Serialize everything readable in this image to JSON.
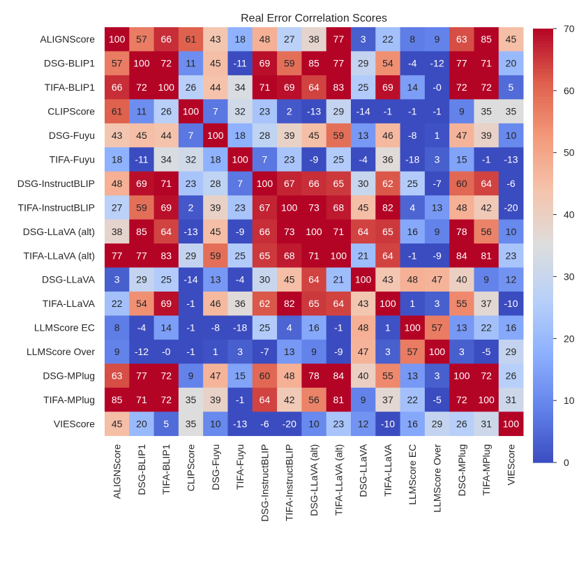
{
  "chart_data": {
    "type": "heatmap",
    "title": "Real Error Correlation Scores",
    "row_labels": [
      "ALIGNScore",
      "DSG-BLIP1",
      "TIFA-BLIP1",
      "CLIPScore",
      "DSG-Fuyu",
      "TIFA-Fuyu",
      "DSG-InstructBLIP",
      "TIFA-InstructBLIP",
      "DSG-LLaVA (alt)",
      "TIFA-LLaVA (alt)",
      "DSG-LLaVA",
      "TIFA-LLaVA",
      "LLMScore EC",
      "LLMScore Over",
      "DSG-MPlug",
      "TIFA-MPlug",
      "VIEScore"
    ],
    "col_labels": [
      "ALIGNScore",
      "DSG-BLIP1",
      "TIFA-BLIP1",
      "CLIPScore",
      "DSG-Fuyu",
      "TIFA-Fuyu",
      "DSG-InstructBLIP",
      "TIFA-InstructBLIP",
      "DSG-LLaVA (alt)",
      "TIFA-LLaVA (alt)",
      "DSG-LLaVA",
      "TIFA-LLaVA",
      "LLMScore EC",
      "LLMScore Over",
      "DSG-MPlug",
      "TIFA-MPlug",
      "VIEScore"
    ],
    "cell_labels": [
      [
        "100",
        "57",
        "66",
        "61",
        "43",
        "18",
        "48",
        "27",
        "38",
        "77",
        "3",
        "22",
        "8",
        "9",
        "63",
        "85",
        "45"
      ],
      [
        "57",
        "100",
        "72",
        "11",
        "45",
        "-11",
        "69",
        "59",
        "85",
        "77",
        "29",
        "54",
        "-4",
        "-12",
        "77",
        "71",
        "20"
      ],
      [
        "66",
        "72",
        "100",
        "26",
        "44",
        "34",
        "71",
        "69",
        "64",
        "83",
        "25",
        "69",
        "14",
        "-0",
        "72",
        "72",
        "5"
      ],
      [
        "61",
        "11",
        "26",
        "100",
        "7",
        "32",
        "23",
        "2",
        "-13",
        "29",
        "-14",
        "-1",
        "-1",
        "-1",
        "9",
        "35",
        "35"
      ],
      [
        "43",
        "45",
        "44",
        "7",
        "100",
        "18",
        "28",
        "39",
        "45",
        "59",
        "13",
        "46",
        "-8",
        "1",
        "47",
        "39",
        "10"
      ],
      [
        "18",
        "-11",
        "34",
        "32",
        "18",
        "100",
        "7",
        "23",
        "-9",
        "25",
        "-4",
        "36",
        "-18",
        "3",
        "15",
        "-1",
        "-13"
      ],
      [
        "48",
        "69",
        "71",
        "23",
        "28",
        "7",
        "100",
        "67",
        "66",
        "65",
        "30",
        "62",
        "25",
        "-7",
        "60",
        "64",
        "-6"
      ],
      [
        "27",
        "59",
        "69",
        "2",
        "39",
        "23",
        "67",
        "100",
        "73",
        "68",
        "45",
        "82",
        "4",
        "13",
        "48",
        "42",
        "-20"
      ],
      [
        "38",
        "85",
        "64",
        "-13",
        "45",
        "-9",
        "66",
        "73",
        "100",
        "71",
        "64",
        "65",
        "16",
        "9",
        "78",
        "56",
        "10"
      ],
      [
        "77",
        "77",
        "83",
        "29",
        "59",
        "25",
        "65",
        "68",
        "71",
        "100",
        "21",
        "64",
        "-1",
        "-9",
        "84",
        "81",
        "23"
      ],
      [
        "3",
        "29",
        "25",
        "-14",
        "13",
        "-4",
        "30",
        "45",
        "64",
        "21",
        "100",
        "43",
        "48",
        "47",
        "40",
        "9",
        "12"
      ],
      [
        "22",
        "54",
        "69",
        "-1",
        "46",
        "36",
        "62",
        "82",
        "65",
        "64",
        "43",
        "100",
        "1",
        "3",
        "55",
        "37",
        "-10"
      ],
      [
        "8",
        "-4",
        "14",
        "-1",
        "-8",
        "-18",
        "25",
        "4",
        "16",
        "-1",
        "48",
        "1",
        "100",
        "57",
        "13",
        "22",
        "16"
      ],
      [
        "9",
        "-12",
        "-0",
        "-1",
        "1",
        "3",
        "-7",
        "13",
        "9",
        "-9",
        "47",
        "3",
        "57",
        "100",
        "3",
        "-5",
        "29"
      ],
      [
        "63",
        "77",
        "72",
        "9",
        "47",
        "15",
        "60",
        "48",
        "78",
        "84",
        "40",
        "55",
        "13",
        "3",
        "100",
        "72",
        "26"
      ],
      [
        "85",
        "71",
        "72",
        "35",
        "39",
        "-1",
        "64",
        "42",
        "56",
        "81",
        "9",
        "37",
        "22",
        "-5",
        "72",
        "100",
        "31"
      ],
      [
        "45",
        "20",
        "5",
        "35",
        "10",
        "-13",
        "-6",
        "-20",
        "10",
        "23",
        "12",
        "-10",
        "16",
        "29",
        "26",
        "31",
        "100"
      ]
    ],
    "vmin": 0,
    "vmax": 70,
    "colormap": "coolwarm",
    "colorbar_ticks": [
      "0",
      "10",
      "20",
      "30",
      "40",
      "50",
      "60",
      "70"
    ],
    "xlabel": "",
    "ylabel": ""
  }
}
